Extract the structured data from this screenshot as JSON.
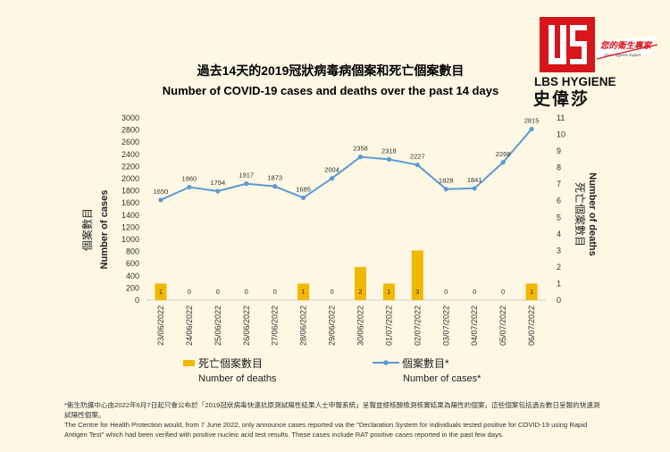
{
  "logo": {
    "brand_en": "LBS HYGIENE",
    "brand_zh": "史偉莎",
    "slogan_zh": "您的衛生專家",
    "slogan_en": "Your Hygiene Expert"
  },
  "colors": {
    "background": "#fdf7e3",
    "cases_line": "#5b9bd5",
    "deaths_bar": "#f2b800",
    "logo_red": "#d7151a"
  },
  "footnote": {
    "zh": "*衞生防護中心由2022年6月7日起只會公布於「2019冠狀病毒快速抗原測試陽性結果人士申報系統」呈報並經核酸檢測核實結果為陽性的個案，這些個案包括過去數日呈報的快速測試陽性個案。",
    "en": "The Centre for Health Protection would, from 7 June 2022, only announce cases reported via the \"Declaration System for individuals tested positive for COVID-19 using Rapid Antigen Test\" which had been verified with positive nucleic acid test results. These cases include RAT positive cases reported in the past few days."
  },
  "chart_data": {
    "type": "bar",
    "title": "過去14天的2019冠狀病毒病個案和死亡個案數目",
    "subtitle": "Number of COVID-19 cases and deaths over the past 14 days",
    "categories": [
      "23/06/2022",
      "24/06/2022",
      "25/06/2022",
      "26/06/2022",
      "27/06/2022",
      "28/06/2022",
      "29/06/2022",
      "30/06/2022",
      "01/07/2022",
      "02/07/2022",
      "03/07/2022",
      "04/07/2022",
      "05/07/2022",
      "06/07/2022"
    ],
    "series": [
      {
        "name": "死亡個案數目 Number of deaths",
        "name_zh": "死亡個案數目",
        "name_en": "Number of deaths",
        "type": "bar",
        "axis": "right",
        "color": "#f2b800",
        "values": [
          1,
          0,
          0,
          0,
          0,
          1,
          0,
          2,
          1,
          3,
          0,
          0,
          0,
          1
        ]
      },
      {
        "name": "個案數目* Number of cases*",
        "name_zh": "個案數目*",
        "name_en": "Number of cases*",
        "type": "line",
        "axis": "left",
        "color": "#5b9bd5",
        "values": [
          1650,
          1860,
          1794,
          1917,
          1873,
          1685,
          2004,
          2358,
          2318,
          2227,
          1828,
          1841,
          2268,
          2815
        ]
      }
    ],
    "ylabel_left_zh": "個案數目",
    "ylabel_left_en": "Number of cases",
    "ylabel_right_zh": "死亡個案數目",
    "ylabel_right_en": "Number of deaths",
    "ylim_left": [
      0,
      3000
    ],
    "yticks_left": [
      "0",
      "200",
      "400",
      "600",
      "800",
      "1000",
      "1200",
      "1400",
      "1600",
      "1800",
      "2000",
      "2200",
      "2400",
      "2600",
      "2800",
      "3000"
    ],
    "ylim_right": [
      0,
      11
    ],
    "yticks_right": [
      "0",
      "1",
      "2",
      "3",
      "4",
      "5",
      "6",
      "7",
      "8",
      "9",
      "10",
      "11"
    ],
    "grid": false,
    "legend": "bottom"
  }
}
